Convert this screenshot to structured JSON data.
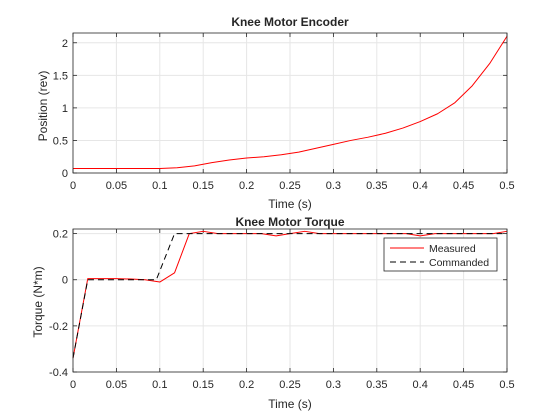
{
  "colors": {
    "measured": "#ff0000",
    "commanded": "#000000",
    "grid": "#e6e6e6",
    "axis": "#262626"
  },
  "chart_data": [
    {
      "type": "line",
      "title": "Knee Motor Encoder",
      "xlabel": "Time (s)",
      "ylabel": "Position (rev)",
      "xlim": [
        0,
        0.5
      ],
      "ylim": [
        0,
        2.15
      ],
      "xticks": [
        0,
        0.05,
        0.1,
        0.15,
        0.2,
        0.25,
        0.3,
        0.35,
        0.4,
        0.45,
        0.5
      ],
      "xtick_labels": [
        "0",
        "0.05",
        "0.1",
        "0.15",
        "0.2",
        "0.25",
        "0.3",
        "0.35",
        "0.4",
        "0.45",
        "0.5"
      ],
      "yticks": [
        0,
        0.5,
        1,
        1.5,
        2
      ],
      "ytick_labels": [
        "0",
        "0.5",
        "1",
        "1.5",
        "2"
      ],
      "grid": true,
      "legend": null,
      "series": [
        {
          "color": "#ff0000",
          "dash": "solid",
          "x": [
            0,
            0.05,
            0.1,
            0.12,
            0.14,
            0.16,
            0.18,
            0.2,
            0.22,
            0.24,
            0.26,
            0.28,
            0.3,
            0.32,
            0.34,
            0.36,
            0.38,
            0.4,
            0.42,
            0.44,
            0.46,
            0.48,
            0.5
          ],
          "y": [
            0.07,
            0.07,
            0.07,
            0.08,
            0.11,
            0.16,
            0.2,
            0.23,
            0.25,
            0.28,
            0.32,
            0.38,
            0.44,
            0.5,
            0.55,
            0.61,
            0.69,
            0.79,
            0.91,
            1.08,
            1.34,
            1.68,
            2.1
          ]
        }
      ]
    },
    {
      "type": "line",
      "title": "Knee Motor Torque",
      "xlabel": "Time (s)",
      "ylabel": "Torque (N*m)",
      "xlim": [
        0,
        0.5
      ],
      "ylim": [
        -0.4,
        0.22
      ],
      "xticks": [
        0,
        0.05,
        0.1,
        0.15,
        0.2,
        0.25,
        0.3,
        0.35,
        0.4,
        0.45,
        0.5
      ],
      "xtick_labels": [
        "0",
        "0.05",
        "0.1",
        "0.15",
        "0.2",
        "0.25",
        "0.3",
        "0.35",
        "0.4",
        "0.45",
        "0.5"
      ],
      "yticks": [
        -0.4,
        -0.2,
        0,
        0.2
      ],
      "ytick_labels": [
        "-0.4",
        "-0.2",
        "0",
        "0.2"
      ],
      "grid": true,
      "legend": "top-right",
      "series": [
        {
          "name": "Measured",
          "color": "#ff0000",
          "dash": "solid",
          "x": [
            0,
            0.017,
            0.034,
            0.05,
            0.067,
            0.083,
            0.1,
            0.117,
            0.134,
            0.15,
            0.167,
            0.184,
            0.2,
            0.217,
            0.234,
            0.25,
            0.267,
            0.284,
            0.3,
            0.317,
            0.334,
            0.35,
            0.367,
            0.384,
            0.4,
            0.417,
            0.434,
            0.45,
            0.467,
            0.484,
            0.5
          ],
          "y": [
            -0.34,
            0.005,
            0.005,
            0.005,
            0.003,
            0.0,
            -0.01,
            0.03,
            0.2,
            0.21,
            0.2,
            0.2,
            0.2,
            0.2,
            0.19,
            0.2,
            0.21,
            0.2,
            0.2,
            0.2,
            0.2,
            0.2,
            0.2,
            0.2,
            0.19,
            0.2,
            0.2,
            0.2,
            0.2,
            0.2,
            0.21
          ]
        },
        {
          "name": "Commanded",
          "color": "#000000",
          "dash": "dashed",
          "x": [
            0,
            0.017,
            0.034,
            0.05,
            0.067,
            0.083,
            0.096,
            0.117,
            0.134,
            0.15,
            0.2,
            0.25,
            0.3,
            0.35,
            0.4,
            0.45,
            0.5
          ],
          "y": [
            -0.34,
            0.0,
            0.0,
            0.0,
            0.0,
            0.0,
            0.0,
            0.2,
            0.2,
            0.2,
            0.2,
            0.2,
            0.2,
            0.2,
            0.2,
            0.2,
            0.2
          ]
        }
      ]
    }
  ]
}
